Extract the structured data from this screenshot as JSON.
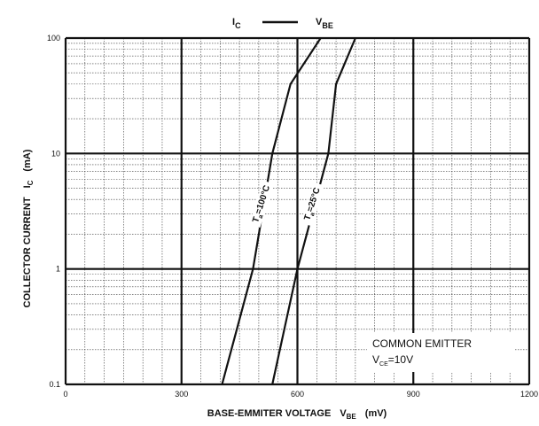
{
  "chart_data": {
    "type": "line",
    "title": {
      "left": "I",
      "left_sub": "C",
      "right": "V",
      "right_sub": "BE"
    },
    "xlabel": {
      "text": "BASE-EMMITER VOLTAGE",
      "symbol": "V",
      "symbol_sub": "BE",
      "unit": "(mV)"
    },
    "ylabel": {
      "text": "COLLECTOR CURRENT",
      "symbol": "I",
      "symbol_sub": "C",
      "unit": "(mA)"
    },
    "xlim": [
      0,
      1200
    ],
    "ylim": [
      0.1,
      100
    ],
    "yscale": "log",
    "x_ticks": [
      0,
      300,
      600,
      900,
      1200
    ],
    "x_tick_labels": [
      "0",
      "300",
      "600",
      "900",
      "1200"
    ],
    "y_ticks": [
      0.1,
      1,
      10,
      100
    ],
    "y_tick_labels": [
      "0.1",
      "1",
      "10",
      "100"
    ],
    "grid": true,
    "series": [
      {
        "name": "Ta=100°C",
        "label_symbol": "T",
        "label_sub": "a",
        "label_value": "=100°C",
        "x": [
          405,
          485,
          535,
          582,
          660
        ],
        "y": [
          0.1,
          1,
          10,
          40,
          100
        ]
      },
      {
        "name": "Ta=25°C",
        "label_symbol": "T",
        "label_sub": "a",
        "label_value": "=25°C",
        "x": [
          535,
          600,
          680,
          700,
          750
        ],
        "y": [
          0.1,
          1,
          10,
          40,
          100
        ]
      }
    ],
    "annotation": {
      "line1": "COMMON EMITTER",
      "line2_symbol": "V",
      "line2_sub": "CE",
      "line2_value": "=10V"
    }
  }
}
